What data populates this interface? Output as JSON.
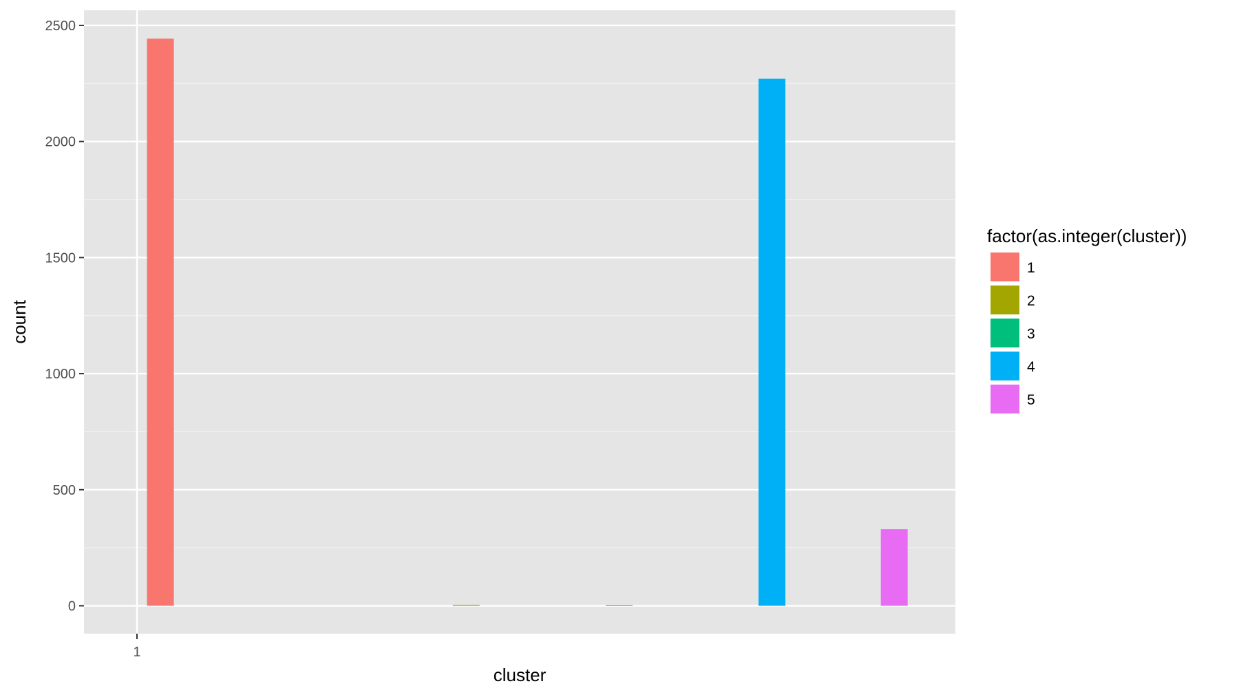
{
  "chart_data": {
    "type": "bar",
    "xlabel": "cluster",
    "ylabel": "count",
    "x_ticks": [
      "1"
    ],
    "y_ticks": [
      0,
      500,
      1000,
      1500,
      2000,
      2500
    ],
    "ylim": [
      -120,
      2565
    ],
    "grid": true,
    "legend_position": "right",
    "legend": {
      "title": "factor(as.integer(cluster))",
      "entries": [
        {
          "label": "1",
          "color": "#F8766D"
        },
        {
          "label": "2",
          "color": "#A3A500"
        },
        {
          "label": "3",
          "color": "#00BF7D"
        },
        {
          "label": "4",
          "color": "#00B0F6"
        },
        {
          "label": "5",
          "color": "#E76BF3"
        }
      ]
    },
    "series": [
      {
        "name": "1",
        "x": 1.0,
        "value": 2443,
        "color": "#F8766D"
      },
      {
        "name": "2",
        "x": 3.0,
        "value": 4,
        "color": "#A3A500"
      },
      {
        "name": "3",
        "x": 4.0,
        "value": 2,
        "color": "#00BF7D"
      },
      {
        "name": "4",
        "x": 5.0,
        "value": 2270,
        "color": "#00B0F6"
      },
      {
        "name": "5",
        "x": 5.8,
        "value": 330,
        "color": "#E76BF3"
      }
    ]
  }
}
